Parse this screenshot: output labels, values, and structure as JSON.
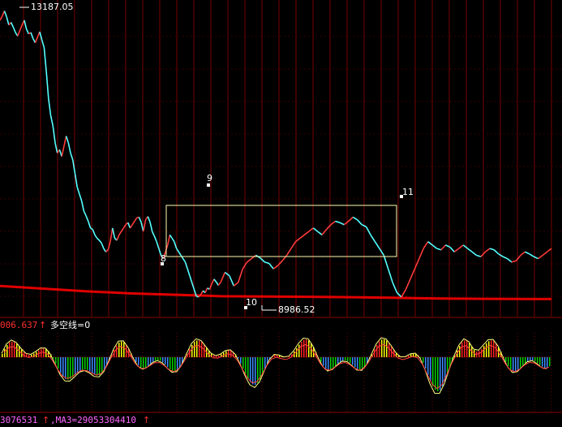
{
  "colors": {
    "background": "#000000",
    "up": "#ff3b3b",
    "down": "#54ffff",
    "grid_vertical": "#7a0000",
    "grid_horizontal": "#3a0000",
    "ma_line": "#e00000",
    "box": "#fffcb0",
    "label": "#ffffff",
    "indicator_red": "#ff2020",
    "indicator_yellow": "#ffff00",
    "indicator_green": "#00d000",
    "indicator_blue": "#3a8cff",
    "info_magenta": "#ff66ff",
    "info_red": "#ff3030"
  },
  "top_value": "13187.05",
  "low_value": "8986.52",
  "indicator_header": {
    "value": "006.637",
    "arrow": "↑",
    "label": "多空线=0"
  },
  "footer": {
    "value1": "3076531",
    "arrow1": "↑",
    "ma_text": ",MA3=29053304410",
    "arrow2": "↑"
  },
  "chart_data": {
    "type": "line",
    "ylim": [
      8700,
      13300
    ],
    "price_x": [
      0,
      2,
      4,
      6,
      8,
      10,
      12,
      14,
      16,
      18,
      20,
      22,
      24,
      26,
      28,
      30,
      32,
      34,
      36,
      38,
      40,
      42,
      44,
      46,
      48,
      50,
      52,
      54,
      56,
      58,
      60,
      62,
      64,
      66,
      68,
      70,
      72,
      74,
      76,
      78,
      80,
      82,
      84,
      86,
      88,
      90,
      92,
      94,
      96,
      98,
      100,
      102,
      104,
      106,
      108,
      110,
      112,
      114,
      116,
      118,
      120,
      122,
      124,
      126,
      128,
      130,
      132,
      134,
      136,
      138,
      140,
      142,
      144,
      146,
      148,
      150,
      152,
      154,
      156,
      158,
      160,
      162,
      164,
      166,
      168,
      170,
      172,
      174,
      176,
      178,
      180,
      182,
      184,
      186,
      188,
      190,
      192,
      194,
      196,
      198,
      200
    ],
    "price": [
      13050,
      13110,
      13187,
      13100,
      12980,
      13020,
      12950,
      12870,
      12820,
      12900,
      12980,
      13050,
      12920,
      12850,
      12870,
      12780,
      12720,
      12800,
      12880,
      12760,
      12650,
      12300,
      11900,
      11650,
      11500,
      11250,
      11100,
      11150,
      11050,
      11200,
      11350,
      11250,
      11100,
      11000,
      10800,
      10600,
      10500,
      10400,
      10250,
      10180,
      10100,
      10000,
      9980,
      9900,
      9850,
      9820,
      9780,
      9700,
      9650,
      9680,
      9800,
      10000,
      9850,
      9820,
      9900,
      9950,
      10000,
      10050,
      10080,
      10000,
      10050,
      10100,
      10150,
      10160,
      10085,
      9950,
      10120,
      10170,
      10090,
      9950,
      9880,
      9800,
      9700,
      9600,
      9550,
      9650,
      9750,
      9900,
      9850,
      9800,
      9700,
      9650,
      9600,
      9550,
      9500,
      9400,
      9300,
      9200,
      9100,
      9000,
      8987,
      9020,
      9080,
      9050,
      9120,
      9100,
      9180,
      9250,
      9210,
      9160,
      9200
    ],
    "price_x_2": [
      200,
      204,
      208,
      212,
      216,
      220,
      224,
      228,
      232,
      236,
      240,
      244,
      248,
      252,
      256,
      260,
      264,
      268,
      272,
      276,
      280,
      284,
      288,
      292,
      296,
      300,
      304,
      308,
      312,
      316,
      320,
      324,
      328,
      332,
      336,
      340,
      344,
      348,
      352,
      356,
      360,
      364,
      368,
      372,
      376,
      380,
      384,
      388,
      392,
      396,
      400
    ],
    "price_2": [
      9200,
      9350,
      9300,
      9150,
      9200,
      9400,
      9500,
      9550,
      9600,
      9560,
      9500,
      9480,
      9400,
      9450,
      9520,
      9600,
      9700,
      9800,
      9850,
      9900,
      9950,
      10000,
      9950,
      9900,
      9980,
      10050,
      10100,
      10080,
      10050,
      10100,
      10160,
      10120,
      10050,
      10020,
      9900,
      9800,
      9700,
      9600,
      9400,
      9200,
      9050,
      8987,
      9100,
      9250,
      9400,
      9550,
      9700,
      9800,
      9750,
      9700,
      9680
    ],
    "price_x_3": [
      400,
      404,
      408,
      412,
      416,
      420,
      424,
      428,
      432,
      436,
      440,
      444,
      448,
      452,
      456,
      460,
      464,
      468,
      472,
      476,
      480,
      484,
      488,
      492,
      496,
      500
    ],
    "price_3": [
      9680,
      9750,
      9720,
      9650,
      9700,
      9750,
      9700,
      9650,
      9600,
      9580,
      9650,
      9700,
      9680,
      9620,
      9580,
      9550,
      9500,
      9520,
      9600,
      9650,
      9620,
      9580,
      9550,
      9600,
      9650,
      9700
    ],
    "ma_x": [
      0,
      40,
      80,
      120,
      160,
      200,
      240,
      280,
      320,
      360,
      400,
      440,
      480,
      500
    ],
    "ma": [
      9150,
      9110,
      9070,
      9040,
      9020,
      9000,
      8995,
      8990,
      8985,
      8975,
      8965,
      8960,
      8958,
      8958
    ],
    "x_range": [
      0,
      500
    ]
  },
  "markers": [
    {
      "label": "8"
    },
    {
      "label": "9"
    },
    {
      "label": "10"
    },
    {
      "label": "11"
    }
  ]
}
